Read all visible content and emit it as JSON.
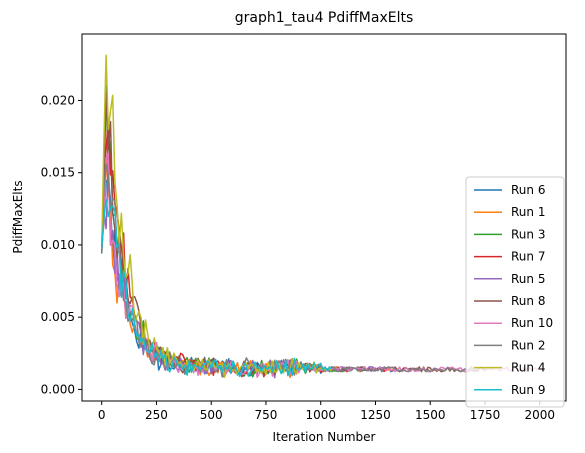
{
  "chart_data": {
    "type": "line",
    "title": "graph1_tau4 PdiffMaxElts",
    "xlabel": "Iteration Number",
    "ylabel": "PdiffMaxElts",
    "xlim": [
      -90,
      2120
    ],
    "ylim": [
      -0.0008,
      0.0246
    ],
    "xticks": [
      0,
      250,
      500,
      750,
      1000,
      1250,
      1500,
      1750,
      2000
    ],
    "xtick_labels": [
      "0",
      "250",
      "500",
      "750",
      "1000",
      "1250",
      "1500",
      "1750",
      "2000"
    ],
    "yticks": [
      0.0,
      0.005,
      0.01,
      0.015,
      0.02
    ],
    "ytick_labels": [
      "0.000",
      "0.005",
      "0.010",
      "0.015",
      "0.020"
    ],
    "grid": false,
    "legend_position": "lower-right",
    "series": [
      {
        "name": "Run 6",
        "color": "#1f77b4",
        "x_end": 1350,
        "peak": 0.0145,
        "seed": 6
      },
      {
        "name": "Run 1",
        "color": "#ff7f0e",
        "x_end": 1330,
        "peak": 0.0135,
        "seed": 1
      },
      {
        "name": "Run 3",
        "color": "#2ca02c",
        "x_end": 1200,
        "peak": 0.0175,
        "seed": 3
      },
      {
        "name": "Run 7",
        "color": "#d62728",
        "x_end": 1300,
        "peak": 0.02,
        "seed": 7
      },
      {
        "name": "Run 5",
        "color": "#9467bd",
        "x_end": 1250,
        "peak": 0.0145,
        "seed": 5
      },
      {
        "name": "Run 8",
        "color": "#8c564b",
        "x_end": 1750,
        "peak": 0.0195,
        "seed": 8
      },
      {
        "name": "Run 10",
        "color": "#e377c2",
        "x_end": 2000,
        "peak": 0.015,
        "seed": 10
      },
      {
        "name": "Run 2",
        "color": "#7f7f7f",
        "x_end": 1750,
        "peak": 0.016,
        "seed": 2
      },
      {
        "name": "Run 4",
        "color": "#bcbd22",
        "x_end": 1050,
        "peak": 0.0234,
        "seed": 4
      },
      {
        "name": "Run 9",
        "color": "#17becf",
        "x_end": 1050,
        "peak": 0.0155,
        "seed": 9
      }
    ]
  }
}
